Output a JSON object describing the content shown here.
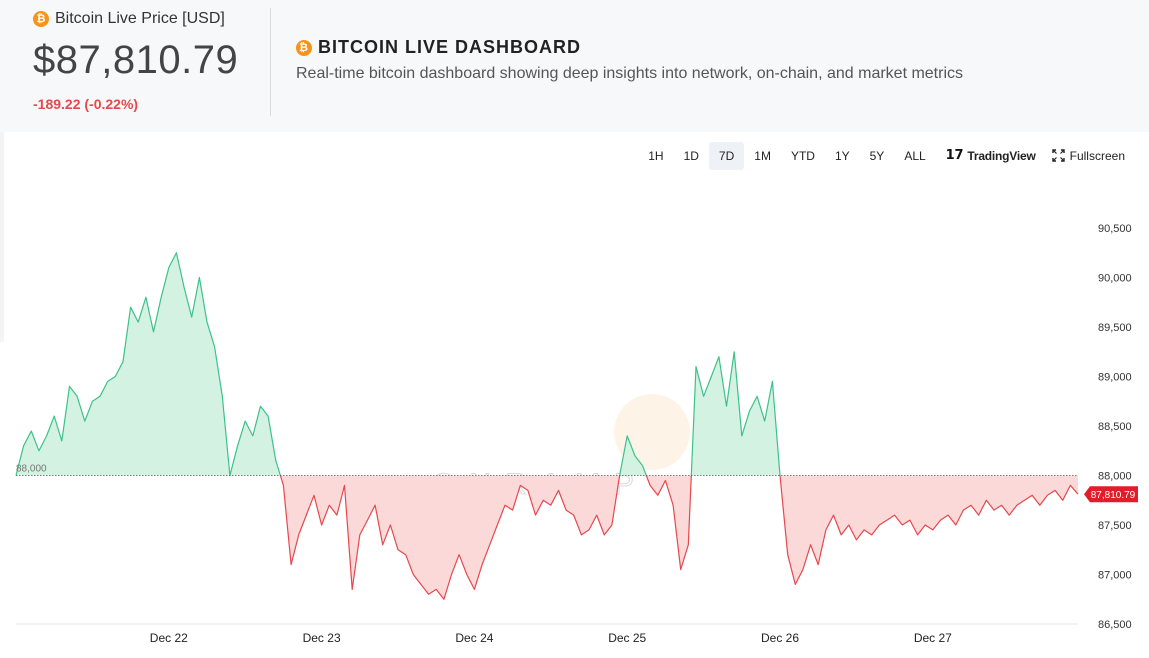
{
  "header": {
    "price_label": "Bitcoin Live Price [USD]",
    "price_value": "$87,810.79",
    "price_change": "-189.22 (-0.22%)",
    "dashboard_title": "BITCOIN LIVE DASHBOARD",
    "dashboard_subtitle": "Real-time bitcoin dashboard showing deep insights into network, on-chain, and market metrics",
    "coin_icon_glyph": "₿"
  },
  "toolbar": {
    "ranges": [
      "1H",
      "1D",
      "7D",
      "1M",
      "YTD",
      "1Y",
      "5Y",
      "ALL"
    ],
    "active_range": "7D",
    "tradingview_label": "TradingView",
    "tradingview_glyph": "17",
    "fullscreen_label": "Fullscreen"
  },
  "watermark": "ONRAMP",
  "colors": {
    "up_line": "#3bc28a",
    "up_fill": "#d3f2e2",
    "down_line": "#e5484d",
    "down_fill": "#fcd9d9",
    "price_tag": "#e11d2a",
    "bitcoin_orange": "#f7931a"
  },
  "chart_data": {
    "type": "area",
    "baseline": 88000,
    "baseline_label": "88,000",
    "last_price": 87810.79,
    "last_price_label": "87,810.79",
    "ylim": [
      86500,
      90500
    ],
    "yticks": [
      90500,
      90000,
      89500,
      89000,
      88500,
      88000,
      87500,
      87000,
      86500
    ],
    "ytick_labels": [
      "90,500",
      "90,000",
      "89,500",
      "89,000",
      "88,500",
      "88,000",
      "87,500",
      "87,000",
      "86,500"
    ],
    "xticks": [
      {
        "label": "Dec 22",
        "t": 1.0
      },
      {
        "label": "Dec 23",
        "t": 2.0
      },
      {
        "label": "Dec 24",
        "t": 3.0
      },
      {
        "label": "Dec 25",
        "t": 4.0
      },
      {
        "label": "Dec 26",
        "t": 5.0
      },
      {
        "label": "Dec 27",
        "t": 6.0
      }
    ],
    "xlim": [
      0.0,
      6.95
    ],
    "series": [
      {
        "t": [
          0.0,
          0.05,
          0.1,
          0.15,
          0.2,
          0.25,
          0.3,
          0.35,
          0.4,
          0.45,
          0.5,
          0.55,
          0.6,
          0.65,
          0.7,
          0.75,
          0.8,
          0.85,
          0.9,
          0.95,
          1.0,
          1.05,
          1.1,
          1.15,
          1.2,
          1.25,
          1.3,
          1.35,
          1.4,
          1.45,
          1.5,
          1.55,
          1.6,
          1.65,
          1.7,
          1.75,
          1.8,
          1.85,
          1.9,
          1.95,
          2.0,
          2.05,
          2.1,
          2.15,
          2.2,
          2.25,
          2.3,
          2.35,
          2.4,
          2.45,
          2.5,
          2.55,
          2.6,
          2.65,
          2.7,
          2.75,
          2.8,
          2.85,
          2.9,
          2.95,
          3.0,
          3.05,
          3.1,
          3.15,
          3.2,
          3.25,
          3.3,
          3.35,
          3.4,
          3.45,
          3.5,
          3.55,
          3.6,
          3.65,
          3.7,
          3.75,
          3.8,
          3.85,
          3.9,
          3.95,
          4.0,
          4.05,
          4.1,
          4.15,
          4.2,
          4.25,
          4.3,
          4.35,
          4.4,
          4.45,
          4.5,
          4.55,
          4.6,
          4.65,
          4.7,
          4.75,
          4.8,
          4.85,
          4.9,
          4.95,
          5.0,
          5.05,
          5.1,
          5.15,
          5.2,
          5.25,
          5.3,
          5.35,
          5.4,
          5.45,
          5.5,
          5.55,
          5.6,
          5.65,
          5.7,
          5.75,
          5.8,
          5.85,
          5.9,
          5.95,
          6.0,
          6.05,
          6.1,
          6.15,
          6.2,
          6.25,
          6.3,
          6.35,
          6.4,
          6.45,
          6.5,
          6.55,
          6.6,
          6.65,
          6.7,
          6.75,
          6.8,
          6.85,
          6.9,
          6.95
        ],
        "v": [
          88000,
          88300,
          88450,
          88250,
          88400,
          88600,
          88350,
          88900,
          88800,
          88550,
          88750,
          88800,
          88950,
          89000,
          89150,
          89700,
          89550,
          89800,
          89450,
          89800,
          90100,
          90250,
          89900,
          89600,
          90000,
          89550,
          89300,
          88800,
          88000,
          88300,
          88550,
          88400,
          88700,
          88600,
          88150,
          87900,
          87100,
          87400,
          87600,
          87800,
          87500,
          87700,
          87600,
          87900,
          86850,
          87400,
          87550,
          87700,
          87300,
          87500,
          87250,
          87200,
          87000,
          86900,
          86800,
          86850,
          86750,
          87000,
          87200,
          87000,
          86850,
          87100,
          87300,
          87500,
          87700,
          87650,
          87900,
          87850,
          87600,
          87750,
          87700,
          87850,
          87650,
          87600,
          87400,
          87450,
          87600,
          87400,
          87500,
          88000,
          88400,
          88200,
          88100,
          87900,
          87800,
          87950,
          87700,
          87050,
          87300,
          89100,
          88800,
          89000,
          89200,
          88700,
          89250,
          88400,
          88650,
          88800,
          88550,
          88950,
          88000,
          87200,
          86900,
          87050,
          87300,
          87100,
          87450,
          87600,
          87400,
          87500,
          87350,
          87450,
          87400,
          87500,
          87550,
          87600,
          87500,
          87550,
          87400,
          87500,
          87450,
          87550,
          87600,
          87500,
          87650,
          87700,
          87600,
          87750,
          87650,
          87700,
          87600,
          87700,
          87750,
          87800,
          87700,
          87800,
          87850,
          87750,
          87900,
          87810.79
        ]
      }
    ]
  }
}
